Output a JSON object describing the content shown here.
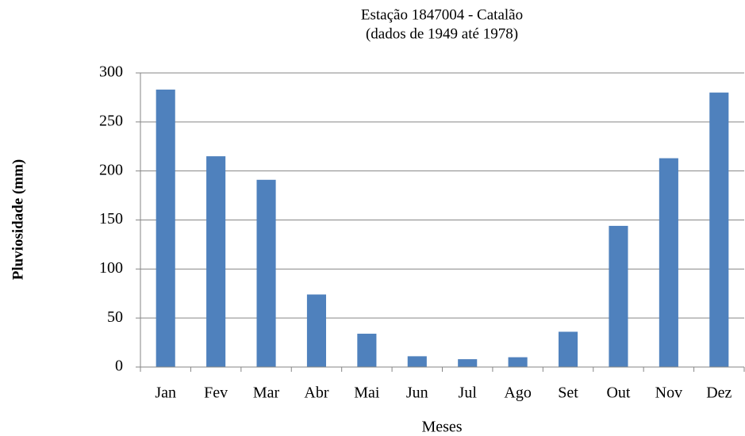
{
  "chart_data": {
    "type": "bar",
    "title": "Estação 1847004 - Catalão",
    "subtitle": "(dados de 1949 até 1978)",
    "x_label": "Meses",
    "y_label": "Pluviosidade (mm)",
    "categories": [
      "Jan",
      "Fev",
      "Mar",
      "Abr",
      "Mai",
      "Jun",
      "Jul",
      "Ago",
      "Set",
      "Out",
      "Nov",
      "Dez"
    ],
    "values": [
      283,
      215,
      191,
      74,
      34,
      11,
      8,
      10,
      36,
      144,
      213,
      280
    ],
    "color": "#4f81bd",
    "ylim": [
      0,
      300
    ],
    "yticks": [
      0,
      50,
      100,
      150,
      200,
      250,
      300
    ],
    "grid": true
  }
}
